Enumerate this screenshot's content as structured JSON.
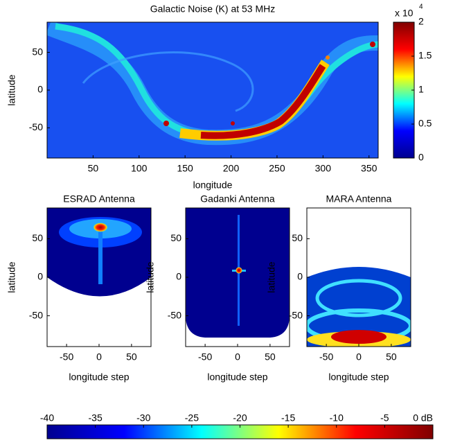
{
  "chart_data": [
    {
      "type": "heatmap",
      "title": "Galactic Noise (K)  at 53 MHz",
      "x_label": "longitude",
      "y_label": "latitude",
      "xlim": [
        0,
        360
      ],
      "ylim": [
        -90,
        90
      ],
      "xticks": [
        50,
        100,
        150,
        200,
        250,
        300,
        350
      ],
      "yticks": [
        -50,
        0,
        50
      ],
      "colorbar": {
        "lim": [
          0,
          20000
        ],
        "multiplier": "x 10",
        "exponent": "4",
        "ticks": [
          0,
          {
            "value": 5000,
            "label": "0.5"
          },
          {
            "value": 10000,
            "label": "1"
          },
          {
            "value": 15000,
            "label": "1.5"
          },
          {
            "value": 20000,
            "label": "2"
          }
        ]
      }
    },
    {
      "type": "heatmap",
      "title": "ESRAD Antenna",
      "x_label": "longitude step",
      "y_label": "latitude",
      "xlim": [
        -80,
        80
      ],
      "ylim": [
        -90,
        90
      ],
      "xticks": [
        -50,
        0,
        50
      ],
      "yticks": [
        -50,
        0,
        50
      ]
    },
    {
      "type": "heatmap",
      "title": "Gadanki Antenna",
      "x_label": "longitude step",
      "y_label": "latitude",
      "xlim": [
        -80,
        80
      ],
      "ylim": [
        -90,
        90
      ],
      "xticks": [
        -50,
        0,
        50
      ],
      "yticks": [
        -50,
        0,
        50
      ]
    },
    {
      "type": "heatmap",
      "title": "MARA Antenna",
      "x_label": "longitude step",
      "y_label": "latitude",
      "xlim": [
        -80,
        80
      ],
      "ylim": [
        -90,
        90
      ],
      "xticks": [
        -50,
        0,
        50
      ],
      "yticks": [
        -50,
        0,
        50
      ]
    },
    {
      "type": "colorbar",
      "lim": [
        -40,
        0
      ],
      "ticks": [
        -40,
        -35,
        -30,
        -25,
        -20,
        -15,
        -10,
        -5,
        {
          "value": 0,
          "label": "0 dB"
        }
      ]
    }
  ],
  "colormap": [
    "#00008f",
    "#0000ff",
    "#00ffff",
    "#ffff00",
    "#ff0000",
    "#800000"
  ]
}
